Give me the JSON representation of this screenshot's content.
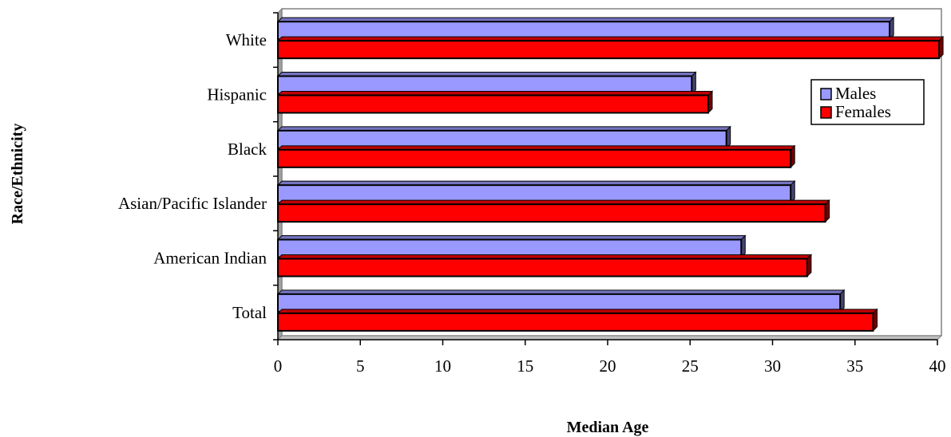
{
  "chart_data": {
    "type": "bar",
    "orientation": "horizontal",
    "title": "",
    "xlabel": "Median Age",
    "ylabel": "Race/Ethnicity",
    "categories": [
      "Total",
      "American Indian",
      "Asian/Pacific Islander",
      "Black",
      "Hispanic",
      "White"
    ],
    "series": [
      {
        "name": "Males",
        "color": "#9999ff",
        "values": [
          34.1,
          28.1,
          31.1,
          27.2,
          25.1,
          37.1
        ]
      },
      {
        "name": "Females",
        "color": "#ff0000",
        "values": [
          36.1,
          32.1,
          33.2,
          31.1,
          26.1,
          40.1
        ]
      }
    ],
    "xlim": [
      0,
      40
    ],
    "xticks": [
      0,
      5,
      10,
      15,
      20,
      25,
      30,
      35,
      40
    ],
    "grid": false,
    "legend_position": "top-right",
    "style": "3d"
  }
}
